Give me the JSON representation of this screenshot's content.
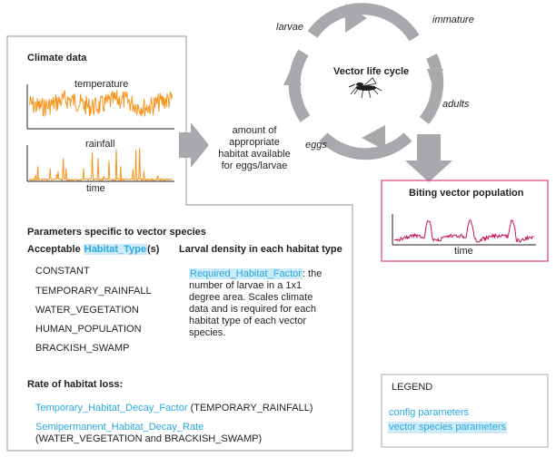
{
  "colors": {
    "box_border": "#a7a9ac",
    "arrow_gray": "#a7a9ac",
    "temperature": "#f7941d",
    "rainfall": "#f7941d",
    "biting": "#c2185b",
    "biting_border": "#d6407f",
    "config": "#29a8df",
    "species_highlight": "#cdeaf7"
  },
  "climate": {
    "title": "Climate data",
    "temperature_label": "temperature",
    "rainfall_label": "rainfall",
    "time_label": "time"
  },
  "habitat_arrow_text": [
    "amount of",
    "appropriate",
    "habitat available",
    "for eggs/larvae"
  ],
  "life_cycle": {
    "title": "Vector life cycle",
    "stages": {
      "larvae": "larvae",
      "immature": "immature",
      "adults": "adults",
      "eggs": "eggs"
    },
    "icon": "mosquito-icon"
  },
  "biting": {
    "title": "Biting vector population",
    "time_label": "time"
  },
  "params": {
    "title": "Parameters specific to vector species",
    "habitat_heading_prefix": "Acceptable ",
    "habitat_heading_param": "Habitat_Type",
    "habitat_heading_suffix": "(s)",
    "habitat_types": [
      "CONSTANT",
      "TEMPORARY_RAINFALL",
      "WATER_VEGETATION",
      "HUMAN_POPULATION",
      "BRACKISH_SWAMP"
    ],
    "larval_heading": "Larval density in each habitat type",
    "larval_param": "Required_Habitat_Factor",
    "larval_desc_lines": [
      ": the",
      "number of larvae in a 1x1",
      "degree area. Scales climate",
      "data and is required for each",
      "habitat type of each vector",
      "species."
    ]
  },
  "loss": {
    "title": "Rate of habitat loss:",
    "temp_param": "Temporary_Habitat_Decay_Factor",
    "temp_desc": " (TEMPORARY_RAINFALL)",
    "semi_param": "Semipermanent_Habitat_Decay_Rate",
    "semi_desc": "(WATER_VEGETATION and BRACKISH_SWAMP)"
  },
  "legend": {
    "title": "LEGEND",
    "config": "config parameters",
    "species": "vector species parameters"
  }
}
